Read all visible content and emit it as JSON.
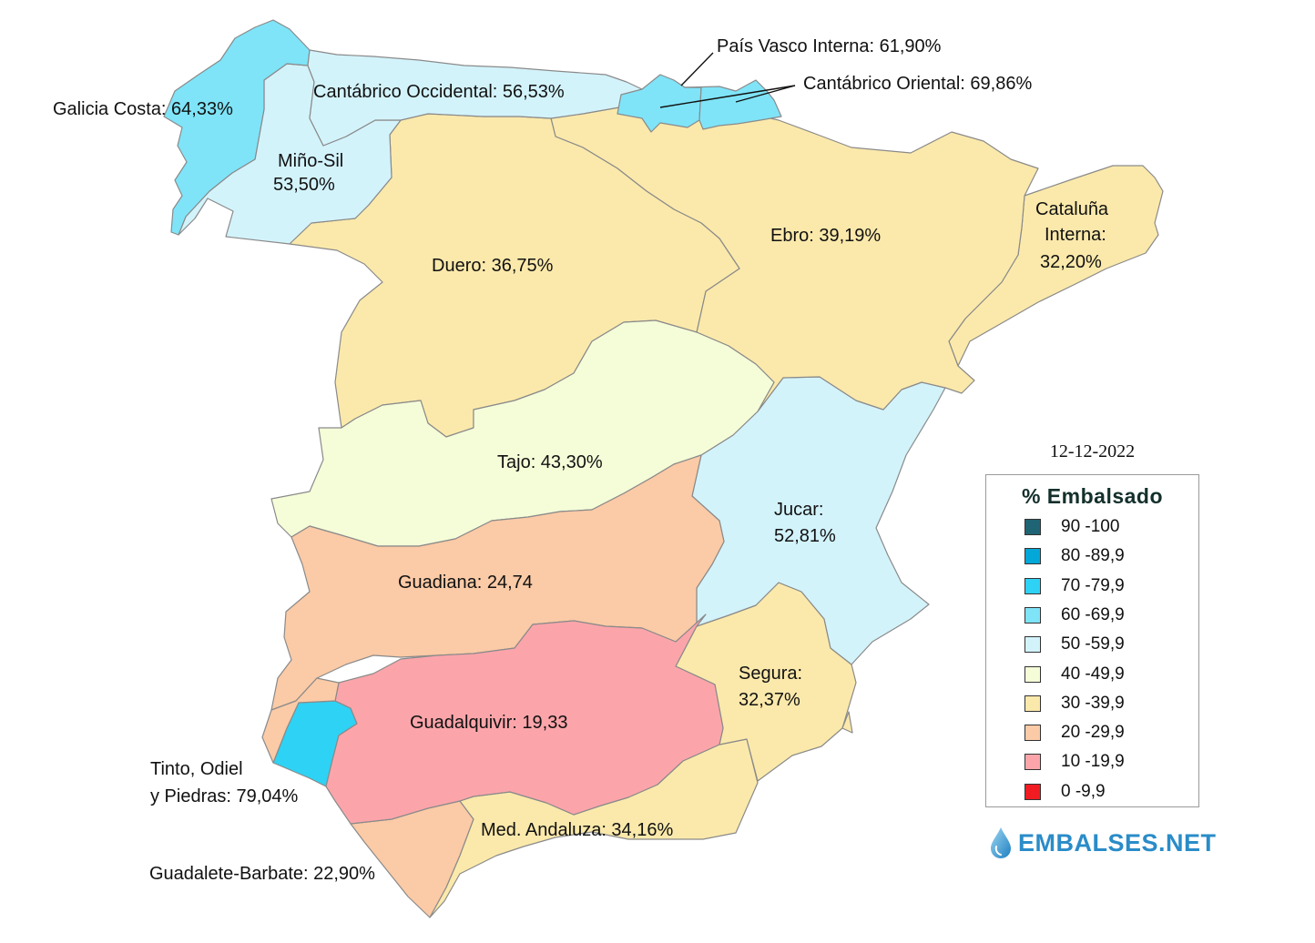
{
  "date": "12-12-2022",
  "legend": {
    "title": "% Embalsado",
    "items": [
      {
        "label": "90 -100",
        "color": "#1f6474"
      },
      {
        "label": "80 -89,9",
        "color": "#03a8d8"
      },
      {
        "label": "70 -79,9",
        "color": "#2ed2f4"
      },
      {
        "label": "60 -69,9",
        "color": "#7fe4f8"
      },
      {
        "label": "50 -59,9",
        "color": "#d3f3fb"
      },
      {
        "label": "40 -49,9",
        "color": "#f5fdd8"
      },
      {
        "label": "30 -39,9",
        "color": "#fbe9ab"
      },
      {
        "label": "20 -29,9",
        "color": "#fbcaa6"
      },
      {
        "label": "10 -19,9",
        "color": "#fba5aa"
      },
      {
        "label": "0 -9,9",
        "color": "#f11c22"
      }
    ]
  },
  "basins": {
    "galicia_costa": {
      "label": "Galicia Costa: 64,33%",
      "value": 64.33,
      "color": "#7fe4f8"
    },
    "mino_sil": {
      "line1": "Miño-Sil",
      "line2": "53,50%",
      "value": 53.5,
      "color": "#d3f3fb"
    },
    "cantabrico_occidental": {
      "label": "Cantábrico Occidental: 56,53%",
      "value": 56.53,
      "color": "#d3f3fb"
    },
    "pais_vasco_interna": {
      "label": "País Vasco Interna: 61,90%",
      "value": 61.9,
      "color": "#7fe4f8"
    },
    "cantabrico_oriental": {
      "label": "Cantábrico Oriental: 69,86%",
      "value": 69.86,
      "color": "#7fe4f8"
    },
    "duero": {
      "label": "Duero: 36,75%",
      "value": 36.75,
      "color": "#fbe9ab"
    },
    "ebro": {
      "label": "Ebro: 39,19%",
      "value": 39.19,
      "color": "#fbe9ab"
    },
    "cataluna_interna": {
      "line1": "Cataluña",
      "line2": "Interna:",
      "line3": "32,20%",
      "value": 32.2,
      "color": "#fbe9ab"
    },
    "tajo": {
      "label": "Tajo: 43,30%",
      "value": 43.3,
      "color": "#f5fdd8"
    },
    "jucar": {
      "line1": "Jucar:",
      "line2": "52,81%",
      "value": 52.81,
      "color": "#d3f3fb"
    },
    "guadiana": {
      "label": "Guadiana: 24,74",
      "value": 24.74,
      "color": "#fbcaa6"
    },
    "guadalquivir": {
      "label": "Guadalquivir: 19,33",
      "value": 19.33,
      "color": "#fba5aa"
    },
    "segura": {
      "line1": "Segura:",
      "line2": "32,37%",
      "value": 32.37,
      "color": "#fbe9ab"
    },
    "tinto_odiel": {
      "line1": "Tinto, Odiel",
      "line2": "y Piedras: 79,04%",
      "value": 79.04,
      "color": "#2ed2f4"
    },
    "med_andaluza": {
      "label": "Med. Andaluza: 34,16%",
      "value": 34.16,
      "color": "#fbe9ab"
    },
    "guadalete_barbate": {
      "label": "Guadalete-Barbate: 22,90%",
      "value": 22.9,
      "color": "#fbcaa6"
    }
  },
  "brand": {
    "name": "EMBALSES.NET",
    "icon": "water-drop-icon",
    "color": "#2a8cc8"
  }
}
